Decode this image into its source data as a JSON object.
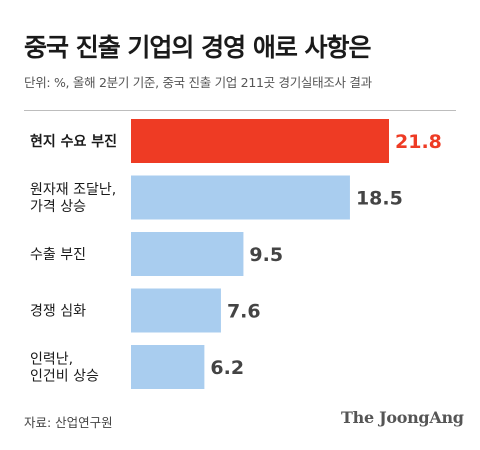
{
  "title": "중국 진출 기업의 경영 애로 사항은",
  "subtitle": "단위: %, 올해 2분기 기준, 중국 진출 기업 211곳 경기실태조사 결과",
  "source": "자료: 산업연구원",
  "logo": "The JoongAng",
  "colors": {
    "highlight": "#ee3b24",
    "bar": "#a9cdef",
    "label": "#1a1a1a",
    "value": "#444444"
  },
  "chart_data": {
    "type": "bar",
    "orientation": "horizontal",
    "title": "중국 진출 기업의 경영 애로 사항은",
    "unit": "%",
    "categories": [
      "현지 수요 부진",
      "원자재 조달난,\n가격 상승",
      "수출 부진",
      "경쟁 심화",
      "인력난,\n인건비 상승"
    ],
    "values": [
      21.8,
      18.5,
      9.5,
      7.6,
      6.2
    ],
    "highlighted_index": 0,
    "xlim": [
      0,
      21.8
    ],
    "grid": false,
    "legend": "none"
  }
}
